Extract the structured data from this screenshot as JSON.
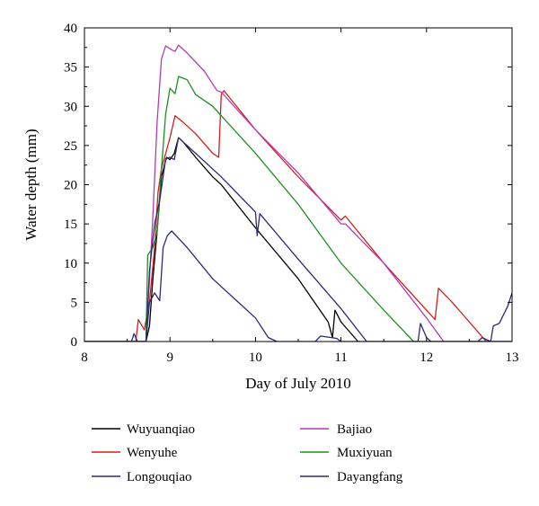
{
  "chart_data": {
    "type": "line",
    "xlabel": "Day of July 2010",
    "ylabel": "Water depth (mm)",
    "xlim": [
      8,
      13
    ],
    "ylim": [
      0,
      40
    ],
    "xticks": [
      "8",
      "9",
      "10",
      "11",
      "12",
      "13"
    ],
    "yticks": [
      "0",
      "5",
      "10",
      "15",
      "20",
      "25",
      "30",
      "35",
      "40"
    ],
    "legend_position": "bottom",
    "series": [
      {
        "name": "Wuyuanqiao",
        "color": "#000000",
        "points": [
          [
            8,
            0
          ],
          [
            8.72,
            0
          ],
          [
            8.76,
            2
          ],
          [
            8.8,
            8
          ],
          [
            8.85,
            14
          ],
          [
            8.9,
            21
          ],
          [
            8.96,
            23.5
          ],
          [
            9.0,
            23.2
          ],
          [
            9.05,
            24
          ],
          [
            9.1,
            26
          ],
          [
            9.15,
            25.5
          ],
          [
            9.3,
            23.5
          ],
          [
            9.5,
            21
          ],
          [
            9.6,
            20
          ],
          [
            10.0,
            14.5
          ],
          [
            10.5,
            8
          ],
          [
            10.85,
            2.5
          ],
          [
            10.9,
            0.5
          ],
          [
            10.93,
            4
          ],
          [
            11.0,
            2.5
          ],
          [
            11.2,
            0
          ]
        ]
      },
      {
        "name": "Wenyuhe",
        "color": "#d41e1e",
        "points": [
          [
            8,
            0
          ],
          [
            8.6,
            0
          ],
          [
            8.63,
            2.8
          ],
          [
            8.7,
            1.5
          ],
          [
            8.76,
            5
          ],
          [
            8.82,
            12
          ],
          [
            8.86,
            19
          ],
          [
            8.9,
            22
          ],
          [
            9.0,
            26
          ],
          [
            9.06,
            28.8
          ],
          [
            9.15,
            28
          ],
          [
            9.3,
            26.5
          ],
          [
            9.5,
            24
          ],
          [
            9.57,
            23.5
          ],
          [
            9.6,
            31.5
          ],
          [
            9.63,
            32
          ],
          [
            10.0,
            27
          ],
          [
            10.5,
            21
          ],
          [
            11.0,
            15.5
          ],
          [
            11.05,
            16
          ],
          [
            11.5,
            10
          ],
          [
            12.1,
            2.8
          ],
          [
            12.14,
            6.8
          ],
          [
            12.3,
            5
          ],
          [
            12.7,
            0
          ],
          [
            13,
            0
          ]
        ]
      },
      {
        "name": "Longouqiao",
        "color": "#2a2a7a",
        "points": [
          [
            8,
            0
          ],
          [
            8.72,
            0
          ],
          [
            8.76,
            5
          ],
          [
            8.82,
            6.2
          ],
          [
            8.88,
            5.2
          ],
          [
            8.92,
            12
          ],
          [
            8.97,
            13.5
          ],
          [
            9.02,
            14.1
          ],
          [
            9.2,
            12
          ],
          [
            9.5,
            8
          ],
          [
            9.8,
            5
          ],
          [
            10.0,
            3
          ],
          [
            10.15,
            0.5
          ],
          [
            10.25,
            0
          ],
          [
            10.7,
            0
          ],
          [
            10.76,
            0.7
          ],
          [
            10.95,
            0.4
          ],
          [
            11.0,
            0
          ],
          [
            13,
            0
          ]
        ]
      },
      {
        "name": "Bajiao",
        "color": "#b23bb5",
        "points": [
          [
            8,
            0
          ],
          [
            8.72,
            0
          ],
          [
            8.76,
            8
          ],
          [
            8.8,
            16
          ],
          [
            8.85,
            28
          ],
          [
            8.9,
            36
          ],
          [
            8.95,
            37.7
          ],
          [
            9.02,
            37.2
          ],
          [
            9.06,
            37
          ],
          [
            9.1,
            37.8
          ],
          [
            9.2,
            36.8
          ],
          [
            9.4,
            34.5
          ],
          [
            9.55,
            32
          ],
          [
            9.6,
            31.8
          ],
          [
            10.0,
            27
          ],
          [
            10.5,
            21.5
          ],
          [
            11.0,
            15
          ],
          [
            11.05,
            15
          ],
          [
            11.5,
            10
          ],
          [
            12.0,
            3
          ],
          [
            12.2,
            0
          ],
          [
            13,
            0
          ]
        ]
      },
      {
        "name": "Muxiyuan",
        "color": "#1f8f1f",
        "points": [
          [
            8,
            0
          ],
          [
            8.72,
            0
          ],
          [
            8.74,
            11
          ],
          [
            8.8,
            12
          ],
          [
            8.85,
            14
          ],
          [
            8.9,
            22
          ],
          [
            8.95,
            29
          ],
          [
            9.0,
            32.3
          ],
          [
            9.06,
            31.6
          ],
          [
            9.1,
            33.8
          ],
          [
            9.2,
            33.4
          ],
          [
            9.3,
            31.5
          ],
          [
            9.5,
            30
          ],
          [
            10.0,
            24
          ],
          [
            10.5,
            17.5
          ],
          [
            11.0,
            10
          ],
          [
            11.5,
            4
          ],
          [
            11.85,
            0
          ],
          [
            13,
            0
          ]
        ]
      },
      {
        "name": "Dayangfang",
        "color": "#2a2a7a",
        "points": [
          [
            8,
            0
          ],
          [
            8.55,
            0
          ],
          [
            8.58,
            1
          ],
          [
            8.62,
            0
          ],
          [
            8.72,
            0
          ],
          [
            8.76,
            9
          ],
          [
            8.82,
            15
          ],
          [
            8.88,
            18
          ],
          [
            8.95,
            23.3
          ],
          [
            9.0,
            23.5
          ],
          [
            9.05,
            23.2
          ],
          [
            9.1,
            26
          ],
          [
            9.3,
            24
          ],
          [
            9.6,
            21
          ],
          [
            10.0,
            16.5
          ],
          [
            10.02,
            13.5
          ],
          [
            10.05,
            16.3
          ],
          [
            10.5,
            10.5
          ],
          [
            11.0,
            4.2
          ],
          [
            11.3,
            0
          ],
          [
            11.9,
            0
          ],
          [
            11.93,
            2.3
          ],
          [
            12.0,
            0.5
          ],
          [
            12.05,
            0
          ],
          [
            12.6,
            0
          ],
          [
            12.65,
            0.5
          ],
          [
            12.75,
            0
          ],
          [
            12.78,
            2
          ],
          [
            12.85,
            2.3
          ],
          [
            12.95,
            4.5
          ],
          [
            13.0,
            6.2
          ]
        ]
      }
    ]
  }
}
